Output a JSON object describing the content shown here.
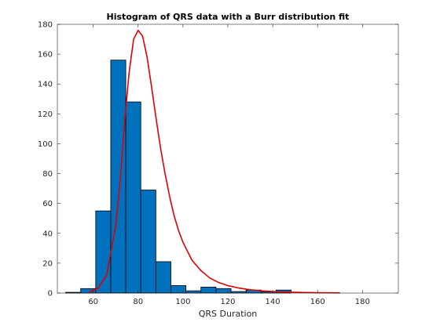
{
  "chart_data": {
    "type": "histogram",
    "title": "Histogram of QRS data with a Burr distribution fit",
    "xlabel": "QRS Duration",
    "ylabel": "",
    "xlim": [
      44,
      196
    ],
    "ylim": [
      0,
      180
    ],
    "xticks": [
      60,
      80,
      100,
      120,
      140,
      160,
      180
    ],
    "yticks": [
      0,
      20,
      40,
      60,
      80,
      100,
      120,
      140,
      160,
      180
    ],
    "grid": false,
    "bars": {
      "name": "",
      "color": "#0072BD",
      "edgecolor": "#000000",
      "bins": [
        {
          "start": 47.7,
          "end": 54.4,
          "value": 0.5
        },
        {
          "start": 54.4,
          "end": 61.1,
          "value": 3
        },
        {
          "start": 61.1,
          "end": 67.8,
          "value": 55
        },
        {
          "start": 67.8,
          "end": 74.5,
          "value": 156
        },
        {
          "start": 74.5,
          "end": 81.2,
          "value": 128
        },
        {
          "start": 81.2,
          "end": 87.9,
          "value": 69
        },
        {
          "start": 87.9,
          "end": 94.6,
          "value": 21
        },
        {
          "start": 94.6,
          "end": 101.3,
          "value": 5
        },
        {
          "start": 101.3,
          "end": 108.0,
          "value": 1.5
        },
        {
          "start": 108.0,
          "end": 114.7,
          "value": 4
        },
        {
          "start": 114.7,
          "end": 121.4,
          "value": 3
        },
        {
          "start": 121.4,
          "end": 128.1,
          "value": 1
        },
        {
          "start": 128.1,
          "end": 134.8,
          "value": 2
        },
        {
          "start": 134.8,
          "end": 141.5,
          "value": 0.8
        },
        {
          "start": 141.5,
          "end": 148.2,
          "value": 2
        }
      ]
    },
    "fit": {
      "name": "Burr distribution fit",
      "color": "#E00000",
      "x": [
        58,
        62,
        66,
        70,
        72,
        74,
        76,
        78,
        80,
        82,
        84,
        86,
        88,
        90,
        92,
        94,
        96,
        98,
        100,
        104,
        108,
        112,
        116,
        120,
        125,
        130,
        135,
        140,
        145,
        150,
        160,
        170
      ],
      "y": [
        0.5,
        3,
        12,
        45,
        75,
        115,
        148,
        170,
        176,
        172,
        158,
        138,
        117,
        97,
        80,
        65,
        52,
        42,
        34,
        22,
        15,
        10,
        7,
        5,
        3.3,
        2.2,
        1.5,
        1.0,
        0.7,
        0.5,
        0.25,
        0.1
      ]
    }
  }
}
